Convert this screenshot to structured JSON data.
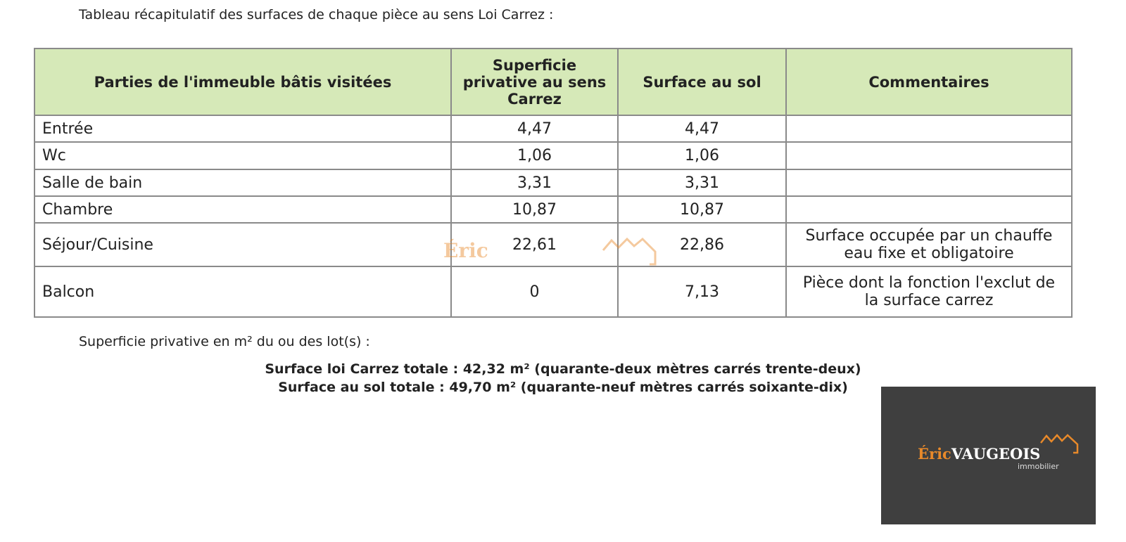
{
  "intro": "Tableau récapitulatif des surfaces de chaque pièce au sens Loi Carrez :",
  "table": {
    "headers": [
      "Parties de l'immeuble bâtis visitées",
      "Superficie privative au sens Carrez",
      "Surface au sol",
      "Commentaires"
    ],
    "rows": [
      [
        "Entrée",
        "4,47",
        "4,47",
        ""
      ],
      [
        "Wc",
        "1,06",
        "1,06",
        ""
      ],
      [
        "Salle de bain",
        "3,31",
        "3,31",
        ""
      ],
      [
        "Chambre",
        "10,87",
        "10,87",
        ""
      ],
      [
        "Séjour/Cuisine",
        "22,61",
        "22,86",
        "Surface occupée par un chauffe eau fixe et obligatoire"
      ],
      [
        "Balcon",
        "0",
        "7,13",
        "Pièce dont la fonction l'exclut de la surface carrez"
      ]
    ],
    "header_color": "#d6e9b8"
  },
  "footer": {
    "label": "Superficie privative en m² du ou des lot(s) :",
    "carrez_total": "Surface loi Carrez totale : 42,32 m² (quarante-deux mètres carrés trente-deux)",
    "sol_total": "Surface au sol totale : 49,70 m² (quarante-neuf mètres carrés soixante-dix)"
  },
  "logo": {
    "first": "Éric",
    "last": "VAUGEOIS",
    "sub": "immobilier",
    "accent": "#e8892a"
  }
}
